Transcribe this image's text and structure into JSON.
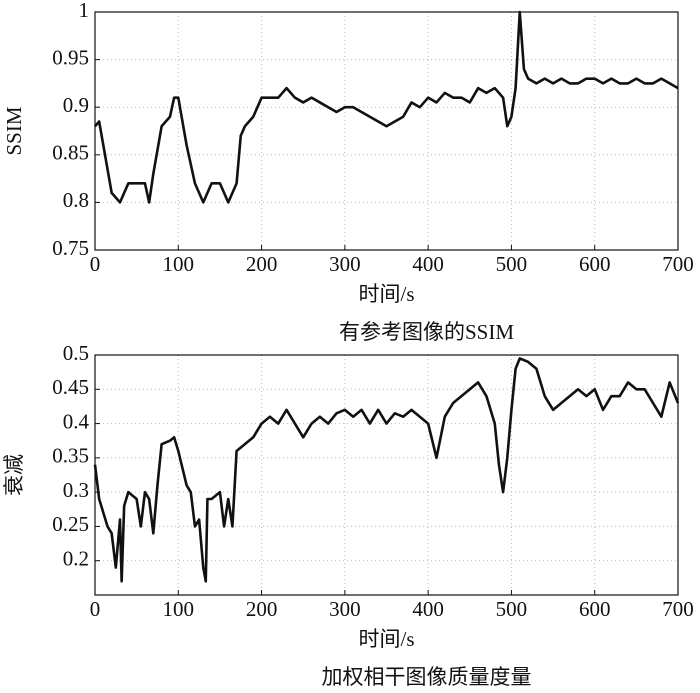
{
  "chart_data": [
    {
      "type": "line",
      "title": "有参考图像的SSIM",
      "xlabel": "时间/s",
      "ylabel": "SSIM",
      "color": "#111111",
      "grid": true,
      "xlim": [
        0,
        700
      ],
      "xticks": [
        0,
        100,
        200,
        300,
        400,
        500,
        600,
        700
      ],
      "ylim": [
        0.75,
        1
      ],
      "yticks": [
        0.75,
        0.8,
        0.85,
        0.9,
        0.95,
        1
      ],
      "x": [
        0,
        5,
        10,
        20,
        30,
        40,
        50,
        60,
        65,
        70,
        80,
        90,
        95,
        100,
        110,
        120,
        130,
        140,
        150,
        160,
        170,
        175,
        180,
        190,
        200,
        210,
        220,
        230,
        240,
        250,
        260,
        270,
        280,
        290,
        300,
        310,
        320,
        330,
        340,
        350,
        360,
        370,
        380,
        390,
        400,
        410,
        420,
        430,
        440,
        450,
        460,
        470,
        480,
        490,
        495,
        500,
        505,
        510,
        515,
        520,
        530,
        540,
        550,
        560,
        570,
        580,
        590,
        600,
        610,
        620,
        630,
        640,
        650,
        660,
        670,
        680,
        690,
        700
      ],
      "values": [
        0.88,
        0.885,
        0.86,
        0.81,
        0.8,
        0.82,
        0.82,
        0.82,
        0.8,
        0.83,
        0.88,
        0.89,
        0.91,
        0.91,
        0.86,
        0.82,
        0.8,
        0.82,
        0.82,
        0.8,
        0.82,
        0.87,
        0.88,
        0.89,
        0.91,
        0.91,
        0.91,
        0.92,
        0.91,
        0.905,
        0.91,
        0.905,
        0.9,
        0.895,
        0.9,
        0.9,
        0.895,
        0.89,
        0.885,
        0.88,
        0.885,
        0.89,
        0.905,
        0.9,
        0.91,
        0.905,
        0.915,
        0.91,
        0.91,
        0.905,
        0.92,
        0.915,
        0.92,
        0.91,
        0.88,
        0.89,
        0.92,
        1.0,
        0.94,
        0.93,
        0.925,
        0.93,
        0.925,
        0.93,
        0.925,
        0.925,
        0.93,
        0.93,
        0.925,
        0.93,
        0.925,
        0.925,
        0.93,
        0.925,
        0.925,
        0.93,
        0.925,
        0.92
      ]
    },
    {
      "type": "line",
      "title": "加权相干图像质量度量",
      "xlabel": "时间/s",
      "ylabel": "衰减",
      "color": "#111111",
      "grid": true,
      "xlim": [
        0,
        700
      ],
      "xticks": [
        0,
        100,
        200,
        300,
        400,
        500,
        600,
        700
      ],
      "ylim": [
        0.15,
        0.5
      ],
      "yticks": [
        0.2,
        0.25,
        0.3,
        0.35,
        0.4,
        0.45,
        0.5
      ],
      "x": [
        0,
        5,
        10,
        15,
        20,
        25,
        30,
        32,
        35,
        40,
        50,
        55,
        60,
        65,
        70,
        75,
        80,
        90,
        95,
        100,
        110,
        115,
        120,
        125,
        130,
        133,
        135,
        140,
        150,
        155,
        160,
        165,
        170,
        180,
        190,
        200,
        210,
        220,
        230,
        240,
        250,
        260,
        270,
        280,
        290,
        300,
        310,
        320,
        330,
        340,
        350,
        360,
        370,
        380,
        390,
        400,
        410,
        420,
        430,
        440,
        450,
        460,
        470,
        480,
        485,
        490,
        495,
        500,
        505,
        510,
        520,
        530,
        540,
        550,
        560,
        570,
        580,
        590,
        600,
        610,
        620,
        630,
        640,
        650,
        660,
        670,
        680,
        690,
        700
      ],
      "values": [
        0.34,
        0.29,
        0.27,
        0.25,
        0.24,
        0.19,
        0.26,
        0.17,
        0.28,
        0.3,
        0.29,
        0.25,
        0.3,
        0.29,
        0.24,
        0.31,
        0.37,
        0.375,
        0.38,
        0.36,
        0.31,
        0.3,
        0.25,
        0.26,
        0.19,
        0.17,
        0.29,
        0.29,
        0.3,
        0.25,
        0.29,
        0.25,
        0.36,
        0.37,
        0.38,
        0.4,
        0.41,
        0.4,
        0.42,
        0.4,
        0.38,
        0.4,
        0.41,
        0.4,
        0.415,
        0.42,
        0.41,
        0.42,
        0.4,
        0.42,
        0.4,
        0.415,
        0.41,
        0.42,
        0.41,
        0.4,
        0.35,
        0.41,
        0.43,
        0.44,
        0.45,
        0.46,
        0.44,
        0.4,
        0.34,
        0.3,
        0.35,
        0.42,
        0.48,
        0.495,
        0.49,
        0.48,
        0.44,
        0.42,
        0.43,
        0.44,
        0.45,
        0.44,
        0.45,
        0.42,
        0.44,
        0.44,
        0.46,
        0.45,
        0.45,
        0.43,
        0.41,
        0.46,
        0.43
      ]
    }
  ]
}
